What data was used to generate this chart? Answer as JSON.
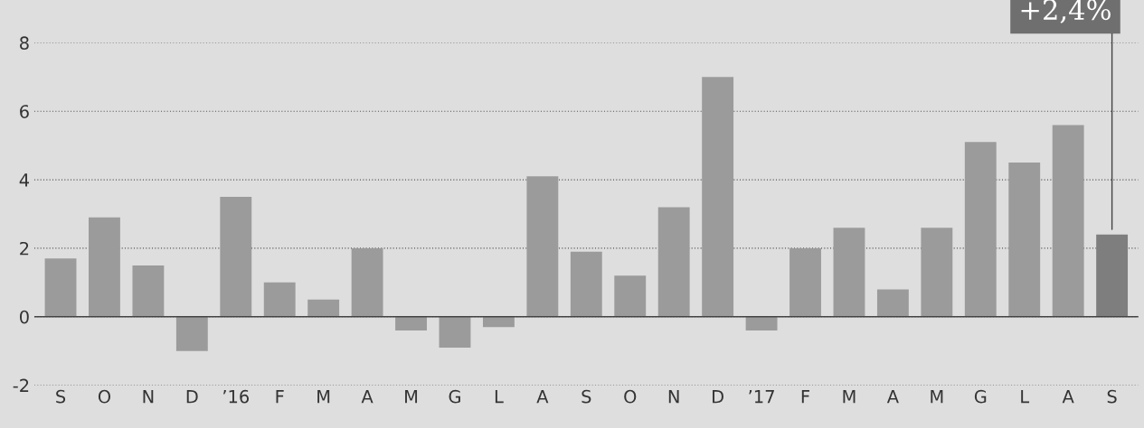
{
  "chart_data": {
    "type": "bar",
    "categories": [
      "S",
      "O",
      "N",
      "D",
      "’16",
      "F",
      "M",
      "A",
      "M",
      "G",
      "L",
      "A",
      "S",
      "O",
      "N",
      "D",
      "’17",
      "F",
      "M",
      "A",
      "M",
      "G",
      "L",
      "A",
      "S"
    ],
    "values": [
      1.7,
      2.9,
      1.5,
      -1.0,
      3.5,
      1.0,
      0.5,
      2.0,
      -0.4,
      -0.9,
      -0.3,
      4.1,
      1.9,
      1.2,
      3.2,
      7.0,
      -0.4,
      2.0,
      2.6,
      0.8,
      2.6,
      5.1,
      4.5,
      5.6,
      2.4
    ],
    "colors": [
      "#9b9b9b",
      "#9b9b9b",
      "#9b9b9b",
      "#9b9b9b",
      "#9b9b9b",
      "#9b9b9b",
      "#9b9b9b",
      "#9b9b9b",
      "#9b9b9b",
      "#9b9b9b",
      "#9b9b9b",
      "#9b9b9b",
      "#9b9b9b",
      "#9b9b9b",
      "#9b9b9b",
      "#9b9b9b",
      "#9b9b9b",
      "#9b9b9b",
      "#9b9b9b",
      "#9b9b9b",
      "#9b9b9b",
      "#9b9b9b",
      "#9b9b9b",
      "#9b9b9b",
      "#7e7e7e"
    ],
    "ylim": [
      -2,
      8
    ],
    "yticks": [
      -2,
      0,
      2,
      4,
      6,
      8
    ],
    "grid": "y",
    "annotations": [
      "+2,4%"
    ]
  }
}
